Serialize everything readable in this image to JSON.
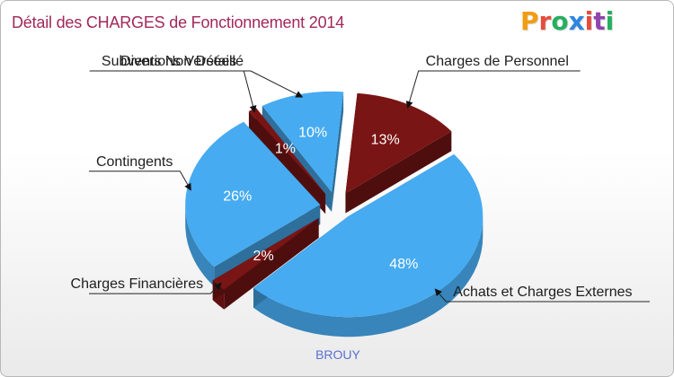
{
  "header": {
    "title": "Détail des CHARGES de Fonctionnement 2014",
    "logo_text": "Proxiti",
    "logo_colors": [
      "#f39c12",
      "#e74c3c",
      "#27ae60",
      "#2e86de",
      "#e74c3c",
      "#8e44ad",
      "#27ae60"
    ]
  },
  "footer": {
    "commune": "BROUY"
  },
  "colors": {
    "blue": "#46abf0",
    "red": "#7a1515"
  },
  "chart_data": {
    "type": "pie",
    "title": "Détail des CHARGES de Fonctionnement 2014",
    "slices": [
      {
        "label": "Charges de Personnel",
        "value": 13,
        "display": "13%",
        "color": "#7a1515"
      },
      {
        "label": "Achats et Charges Externes",
        "value": 48,
        "display": "48%",
        "color": "#46abf0"
      },
      {
        "label": "Charges Financières",
        "value": 2,
        "display": "2%",
        "color": "#7a1515"
      },
      {
        "label": "Contingents",
        "value": 26,
        "display": "26%",
        "color": "#46abf0"
      },
      {
        "label": "Subventions Versées",
        "value": 1,
        "display": "1%",
        "color": "#7a1515"
      },
      {
        "label": "Divers Non Détaillé",
        "value": 10,
        "display": "10%",
        "color": "#46abf0"
      }
    ]
  }
}
